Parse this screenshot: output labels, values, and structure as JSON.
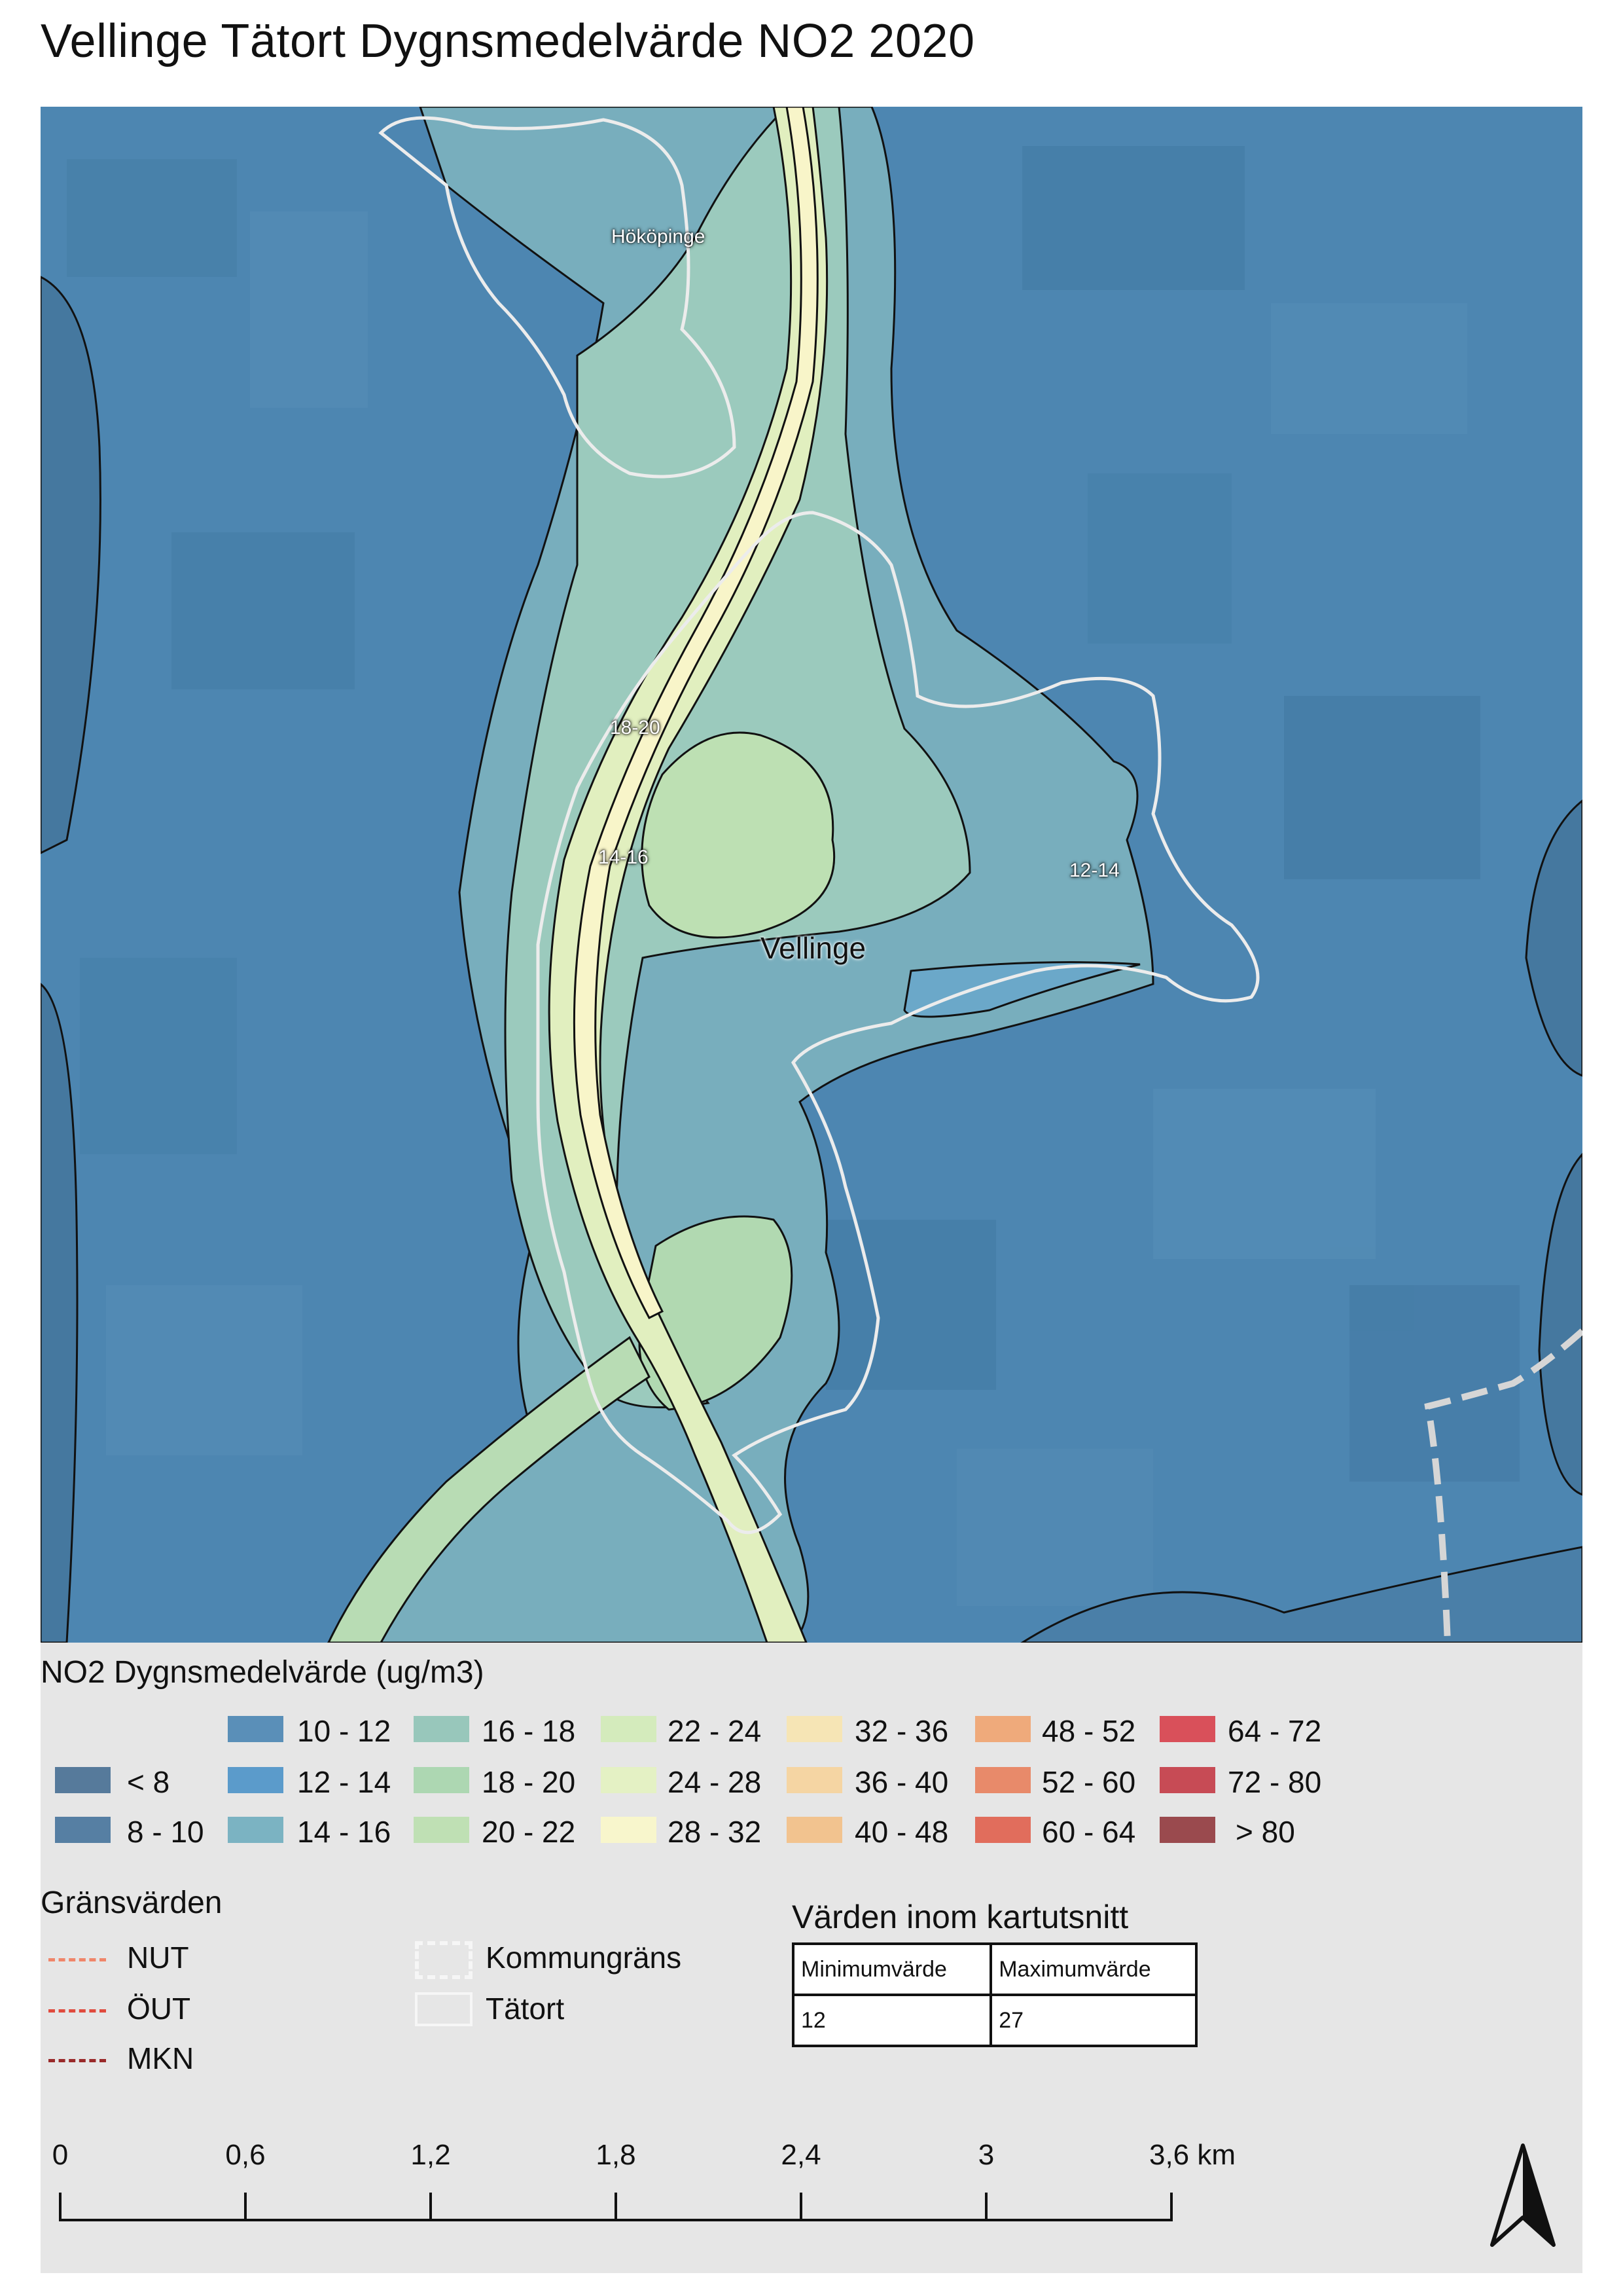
{
  "title": "Vellinge Tätort Dygnsmedelvärde NO2 2020",
  "map": {
    "labels": {
      "hokopinge": "Hököpinge",
      "vellinge": "Vellinge",
      "zone_18_20": "18-20",
      "zone_14_16": "14-16",
      "zone_12_14": "12-14"
    },
    "colors": {
      "background": "#4f89b4",
      "tatort_outline": "#e9e9e9",
      "kommun_line": "#d8d8d8"
    }
  },
  "legend": {
    "title": "NO2 Dygnsmedelvärde (ug/m3)",
    "classes": [
      {
        "label": "< 8",
        "color": "#567a9b"
      },
      {
        "label": "8 - 10",
        "color": "#567fa3"
      },
      {
        "label": "10 - 12",
        "color": "#5a8fb8"
      },
      {
        "label": "12 - 14",
        "color": "#5b9bcb"
      },
      {
        "label": "14 - 16",
        "color": "#7bb3c2"
      },
      {
        "label": "16 - 18",
        "color": "#98c7bb"
      },
      {
        "label": "18 - 20",
        "color": "#add7b2"
      },
      {
        "label": "20 - 22",
        "color": "#bfe0b4"
      },
      {
        "label": "22 - 24",
        "color": "#d4ebbc"
      },
      {
        "label": "24 - 28",
        "color": "#e4f1c4"
      },
      {
        "label": "28 - 32",
        "color": "#f8f6cc"
      },
      {
        "label": "32 - 36",
        "color": "#f6e5b5"
      },
      {
        "label": "36 - 40",
        "color": "#f5d5a3"
      },
      {
        "label": "40 - 48",
        "color": "#f2c38f"
      },
      {
        "label": "48 - 52",
        "color": "#efaa7b"
      },
      {
        "label": "52 - 60",
        "color": "#e88a6a"
      },
      {
        "label": "60 - 64",
        "color": "#e16d5c"
      },
      {
        "label": "64 - 72",
        "color": "#d9505a"
      },
      {
        "label": "72 - 80",
        "color": "#c74b55"
      },
      {
        "label": "> 80",
        "color": "#9a4a4e"
      }
    ],
    "limits": {
      "title": "Gränsvärden",
      "items": [
        {
          "label": "NUT",
          "color": "#f0866a"
        },
        {
          "label": "ÖUT",
          "color": "#e04b3e"
        },
        {
          "label": "MKN",
          "color": "#9a2a2a"
        }
      ]
    },
    "boundaries": [
      {
        "label": "Kommungräns",
        "icon": "dashed-white-box"
      },
      {
        "label": "Tätort",
        "icon": "white-outline-box"
      }
    ],
    "stats": {
      "title": "Värden inom kartutsnitt",
      "headers": [
        "Minimumvärde",
        "Maximumvärde"
      ],
      "values": [
        "12",
        "27"
      ]
    },
    "scale": {
      "ticks": [
        "0",
        "0,6",
        "1,2",
        "1,8",
        "2,4",
        "3",
        "3,6 km"
      ]
    }
  }
}
